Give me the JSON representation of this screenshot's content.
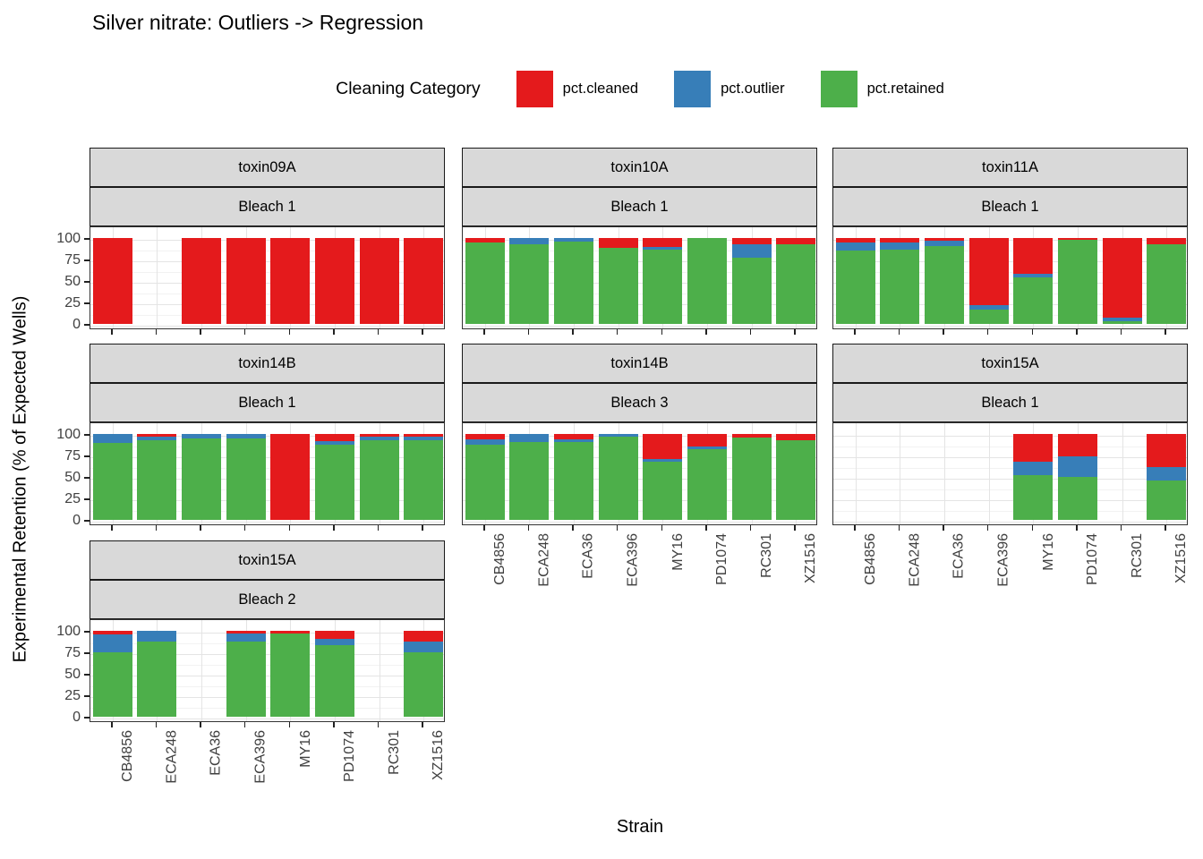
{
  "title": "Silver nitrate: Outliers -> Regression",
  "legend": {
    "title": "Cleaning Category",
    "items": [
      {
        "label": "pct.cleaned",
        "color": "#E41A1C"
      },
      {
        "label": "pct.outlier",
        "color": "#377EB8"
      },
      {
        "label": "pct.retained",
        "color": "#4DAF4A"
      }
    ]
  },
  "axes": {
    "x_title": "Strain",
    "y_title": "Experimental Retention (% of Expected Wells)"
  },
  "chart_data": {
    "type": "bar",
    "stacked": true,
    "unit": "percent of expected wells",
    "ylim": [
      0,
      100
    ],
    "y_ticks": [
      0,
      25,
      50,
      75,
      100
    ],
    "y_minor_ticks": [
      12.5,
      37.5,
      62.5,
      87.5
    ],
    "grid": true,
    "legend_position": "top",
    "categories": [
      "CB4856",
      "ECA248",
      "ECA36",
      "ECA396",
      "MY16",
      "PD1074",
      "RC301",
      "XZ1516"
    ],
    "series": [
      {
        "key": "cleaned",
        "label": "pct.cleaned",
        "color": "#E41A1C"
      },
      {
        "key": "outlier",
        "label": "pct.outlier",
        "color": "#377EB8"
      },
      {
        "key": "retained",
        "label": "pct.retained",
        "color": "#4DAF4A"
      }
    ],
    "stack_order_bottom_to_top": [
      "retained",
      "outlier",
      "cleaned"
    ],
    "facets": [
      {
        "toxin": "toxin09A",
        "bleach": "Bleach 1",
        "row": 0,
        "col": 0,
        "bars": {
          "CB4856": {
            "cleaned": 100,
            "outlier": 0,
            "retained": 0
          },
          "ECA248": null,
          "ECA36": {
            "cleaned": 100,
            "outlier": 0,
            "retained": 0
          },
          "ECA396": {
            "cleaned": 100,
            "outlier": 0,
            "retained": 0
          },
          "MY16": {
            "cleaned": 100,
            "outlier": 0,
            "retained": 0
          },
          "PD1074": {
            "cleaned": 100,
            "outlier": 0,
            "retained": 0
          },
          "RC301": {
            "cleaned": 100,
            "outlier": 0,
            "retained": 0
          },
          "XZ1516": {
            "cleaned": 100,
            "outlier": 0,
            "retained": 0
          }
        }
      },
      {
        "toxin": "toxin10A",
        "bleach": "Bleach 1",
        "row": 0,
        "col": 1,
        "bars": {
          "CB4856": {
            "cleaned": 5,
            "outlier": 0,
            "retained": 95
          },
          "ECA248": {
            "cleaned": 0,
            "outlier": 7,
            "retained": 93
          },
          "ECA36": {
            "cleaned": 0,
            "outlier": 4,
            "retained": 96
          },
          "ECA396": {
            "cleaned": 11,
            "outlier": 0,
            "retained": 89
          },
          "MY16": {
            "cleaned": 10,
            "outlier": 4,
            "retained": 86
          },
          "PD1074": {
            "cleaned": 0,
            "outlier": 0,
            "retained": 100
          },
          "RC301": {
            "cleaned": 7,
            "outlier": 16,
            "retained": 77
          },
          "XZ1516": {
            "cleaned": 7,
            "outlier": 0,
            "retained": 93
          }
        }
      },
      {
        "toxin": "toxin11A",
        "bleach": "Bleach 1",
        "row": 0,
        "col": 2,
        "bars": {
          "CB4856": {
            "cleaned": 5,
            "outlier": 10,
            "retained": 85
          },
          "ECA248": {
            "cleaned": 5,
            "outlier": 9,
            "retained": 86
          },
          "ECA36": {
            "cleaned": 3,
            "outlier": 6,
            "retained": 91
          },
          "ECA396": {
            "cleaned": 78,
            "outlier": 5,
            "retained": 17
          },
          "MY16": {
            "cleaned": 42,
            "outlier": 4,
            "retained": 54
          },
          "PD1074": {
            "cleaned": 2,
            "outlier": 0,
            "retained": 98
          },
          "RC301": {
            "cleaned": 93,
            "outlier": 4,
            "retained": 3
          },
          "XZ1516": {
            "cleaned": 7,
            "outlier": 0,
            "retained": 93
          }
        }
      },
      {
        "toxin": "toxin14B",
        "bleach": "Bleach 1",
        "row": 1,
        "col": 0,
        "bars": {
          "CB4856": {
            "cleaned": 0,
            "outlier": 10,
            "retained": 90
          },
          "ECA248": {
            "cleaned": 3,
            "outlier": 4,
            "retained": 93
          },
          "ECA36": {
            "cleaned": 0,
            "outlier": 5,
            "retained": 95
          },
          "ECA396": {
            "cleaned": 0,
            "outlier": 5,
            "retained": 95
          },
          "MY16": {
            "cleaned": 100,
            "outlier": 0,
            "retained": 0
          },
          "PD1074": {
            "cleaned": 8,
            "outlier": 4,
            "retained": 88
          },
          "RC301": {
            "cleaned": 3,
            "outlier": 4,
            "retained": 93
          },
          "XZ1516": {
            "cleaned": 3,
            "outlier": 4,
            "retained": 93
          }
        }
      },
      {
        "toxin": "toxin14B",
        "bleach": "Bleach 3",
        "row": 1,
        "col": 1,
        "bars": {
          "CB4856": {
            "cleaned": 6,
            "outlier": 6,
            "retained": 88
          },
          "ECA248": {
            "cleaned": 0,
            "outlier": 9,
            "retained": 91
          },
          "ECA36": {
            "cleaned": 6,
            "outlier": 3,
            "retained": 91
          },
          "ECA396": {
            "cleaned": 0,
            "outlier": 3,
            "retained": 97
          },
          "MY16": {
            "cleaned": 29,
            "outlier": 3,
            "retained": 68
          },
          "PD1074": {
            "cleaned": 15,
            "outlier": 3,
            "retained": 82
          },
          "RC301": {
            "cleaned": 4,
            "outlier": 0,
            "retained": 96
          },
          "XZ1516": {
            "cleaned": 7,
            "outlier": 0,
            "retained": 93
          }
        }
      },
      {
        "toxin": "toxin15A",
        "bleach": "Bleach 1",
        "row": 1,
        "col": 2,
        "bars": {
          "CB4856": null,
          "ECA248": null,
          "ECA36": null,
          "ECA396": null,
          "MY16": {
            "cleaned": 32,
            "outlier": 16,
            "retained": 52
          },
          "PD1074": {
            "cleaned": 26,
            "outlier": 24,
            "retained": 50
          },
          "RC301": null,
          "XZ1516": {
            "cleaned": 39,
            "outlier": 15,
            "retained": 46
          }
        }
      },
      {
        "toxin": "toxin15A",
        "bleach": "Bleach 2",
        "row": 2,
        "col": 0,
        "bars": {
          "CB4856": {
            "cleaned": 4,
            "outlier": 21,
            "retained": 75
          },
          "ECA248": {
            "cleaned": 0,
            "outlier": 13,
            "retained": 87
          },
          "ECA36": null,
          "ECA396": {
            "cleaned": 3,
            "outlier": 9,
            "retained": 88
          },
          "MY16": {
            "cleaned": 3,
            "outlier": 0,
            "retained": 97
          },
          "PD1074": {
            "cleaned": 9,
            "outlier": 8,
            "retained": 83
          },
          "RC301": null,
          "XZ1516": {
            "cleaned": 12,
            "outlier": 13,
            "retained": 75
          }
        }
      }
    ]
  },
  "style": {
    "strip_background": "#D9D9D9",
    "panel_border": "#333333",
    "grid_major": "#E4E4E4",
    "grid_minor": "#F2F2F2",
    "axis_text_color": "#404040"
  }
}
